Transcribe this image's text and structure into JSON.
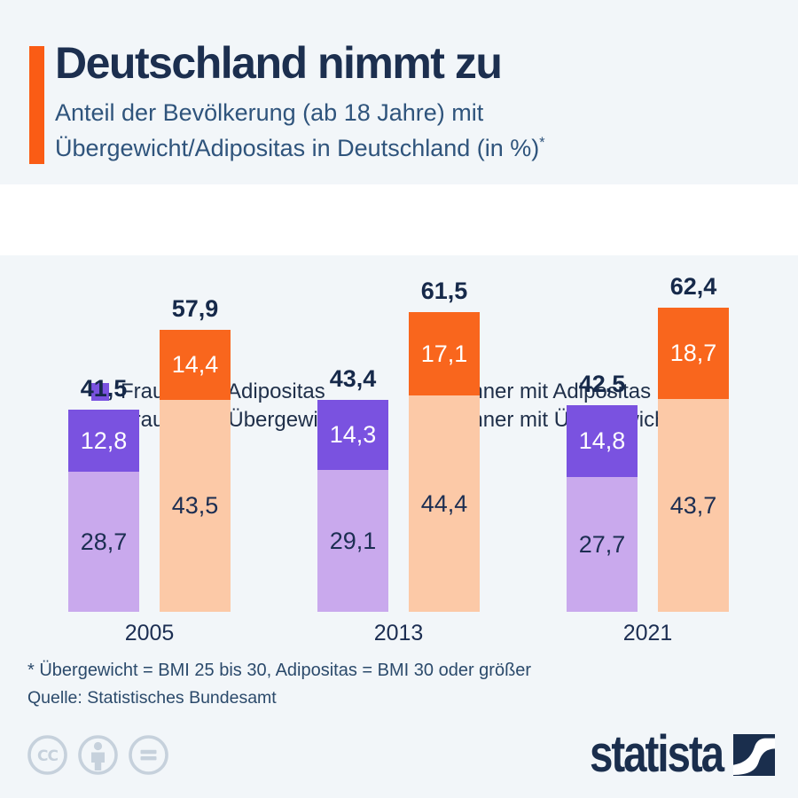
{
  "header": {
    "title": "Deutschland nimmt zu",
    "subtitle_line1": "Anteil der Bevölkerung (ab 18 Jahre) mit",
    "subtitle_line2": "Übergewicht/Adipositas in Deutschland (in %)",
    "footnote_marker": "*"
  },
  "legend": {
    "items": [
      {
        "label": "Frauen mit Adipositas",
        "color": "#7a52e0"
      },
      {
        "label": "Männer mit Adipositas",
        "color": "#f9661d"
      },
      {
        "label": "Frauen mit Übergewicht",
        "color": "#c9a9ed"
      },
      {
        "label": "Männer mit Übergewicht",
        "color": "#fcc9a7"
      }
    ]
  },
  "chart_data": {
    "type": "bar",
    "stacked": true,
    "unit": "percent of population aged 18+",
    "categories": [
      "2005",
      "2013",
      "2021"
    ],
    "series": [
      {
        "name": "Frauen mit Adipositas",
        "color": "#7a52e0",
        "label_color": "#ffffff",
        "values": [
          12.8,
          14.3,
          14.8
        ],
        "labels": [
          "12,8",
          "14,3",
          "14,8"
        ]
      },
      {
        "name": "Frauen mit Übergewicht",
        "color": "#c9a9ed",
        "label_color": "#1c2e52",
        "values": [
          28.7,
          29.1,
          27.7
        ],
        "labels": [
          "28,7",
          "29,1",
          "27,7"
        ]
      },
      {
        "name": "Männer mit Adipositas",
        "color": "#f9661d",
        "label_color": "#ffffff",
        "values": [
          14.4,
          17.1,
          18.7
        ],
        "labels": [
          "14,4",
          "17,1",
          "18,7"
        ]
      },
      {
        "name": "Männer mit Übergewicht",
        "color": "#fcc9a7",
        "label_color": "#1c2e52",
        "values": [
          43.5,
          44.4,
          43.7
        ],
        "labels": [
          "43,5",
          "44,4",
          "43,7"
        ]
      }
    ],
    "bars": [
      {
        "key": "frauen",
        "top_series": 0,
        "bottom_series": 1,
        "totals": [
          "41,5",
          "43,4",
          "42,5"
        ]
      },
      {
        "key": "maenner",
        "top_series": 2,
        "bottom_series": 3,
        "totals": [
          "57,9",
          "61,5",
          "62,4"
        ]
      }
    ],
    "legend_position": "top",
    "grid": false,
    "ylim": [
      0,
      70
    ]
  },
  "footer": {
    "footnote": "* Übergewicht = BMI 25 bis 30, Adipositas = BMI 30 oder größer",
    "source": "Quelle: Statistisches Bundesamt"
  },
  "branding": {
    "logo_text": "statista",
    "license_icons": [
      "cc-icon",
      "attribution-icon",
      "equals-icon"
    ]
  },
  "colors": {
    "background": "#f2f6f9",
    "legend_band": "#ffffff",
    "accent_orange": "#fa5c15",
    "title_text": "#1c2f4f",
    "subtitle_text": "#2f547c",
    "dark_text": "#1c2e52",
    "footer_text": "#2b4a6b",
    "license_icon": "#c6d1dc",
    "logo_navy": "#1a2e4d"
  }
}
